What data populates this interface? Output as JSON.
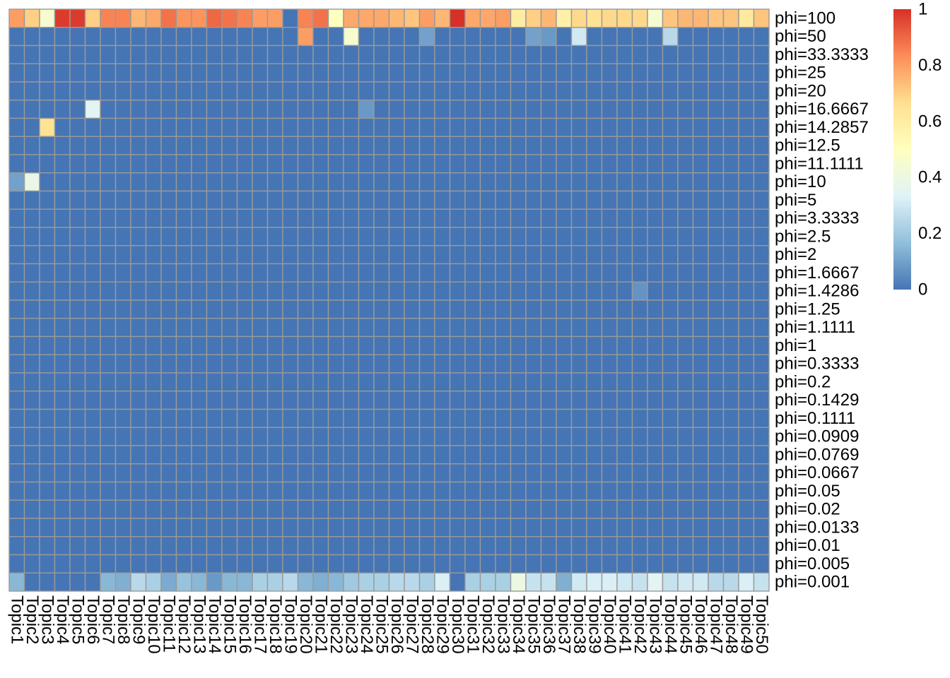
{
  "chart_data": {
    "type": "heatmap",
    "columns": [
      "Topic1",
      "Topic2",
      "Topic3",
      "Topic4",
      "Topic5",
      "Topic6",
      "Topic7",
      "Topic8",
      "Topic9",
      "Topic10",
      "Topic11",
      "Topic12",
      "Topic13",
      "Topic14",
      "Topic15",
      "Topic16",
      "Topic17",
      "Topic18",
      "Topic19",
      "Topic20",
      "Topic21",
      "Topic22",
      "Topic23",
      "Topic24",
      "Topic25",
      "Topic26",
      "Topic27",
      "Topic28",
      "Topic29",
      "Topic30",
      "Topic31",
      "Topic32",
      "Topic33",
      "Topic34",
      "Topic35",
      "Topic36",
      "Topic37",
      "Topic38",
      "Topic39",
      "Topic40",
      "Topic41",
      "Topic42",
      "Topic43",
      "Topic44",
      "Topic45",
      "Topic46",
      "Topic47",
      "Topic48",
      "Topic49",
      "Topic50"
    ],
    "rows": [
      "phi=100",
      "phi=50",
      "phi=33.3333",
      "phi=25",
      "phi=20",
      "phi=16.6667",
      "phi=14.2857",
      "phi=12.5",
      "phi=11.1111",
      "phi=10",
      "phi=5",
      "phi=3.3333",
      "phi=2.5",
      "phi=2",
      "phi=1.6667",
      "phi=1.4286",
      "phi=1.25",
      "phi=1.1111",
      "phi=1",
      "phi=0.3333",
      "phi=0.2",
      "phi=0.1429",
      "phi=0.1111",
      "phi=0.0909",
      "phi=0.0769",
      "phi=0.0667",
      "phi=0.05",
      "phi=0.02",
      "phi=0.0133",
      "phi=0.01",
      "phi=0.005",
      "phi=0.001"
    ],
    "default_value": 0.0,
    "row_values": {
      "phi=100": [
        0.8,
        0.7,
        0.45,
        0.98,
        0.98,
        0.7,
        0.85,
        0.85,
        0.75,
        0.78,
        0.88,
        0.82,
        0.82,
        0.9,
        0.88,
        0.85,
        0.8,
        0.8,
        0.0,
        0.85,
        0.88,
        0.5,
        0.78,
        0.78,
        0.78,
        0.75,
        0.72,
        0.8,
        0.75,
        1.0,
        0.78,
        0.78,
        0.8,
        0.6,
        0.7,
        0.75,
        0.58,
        0.68,
        0.65,
        0.68,
        0.68,
        0.68,
        0.45,
        0.72,
        0.75,
        0.75,
        0.72,
        0.72,
        0.62,
        0.72
      ],
      "phi=0.001": [
        0.15,
        0.0,
        0.0,
        0.0,
        0.0,
        0.0,
        0.15,
        0.13,
        0.25,
        0.22,
        0.12,
        0.18,
        0.15,
        0.08,
        0.15,
        0.15,
        0.22,
        0.22,
        0.25,
        0.15,
        0.13,
        0.15,
        0.2,
        0.22,
        0.22,
        0.25,
        0.25,
        0.22,
        0.32,
        0.0,
        0.22,
        0.22,
        0.22,
        0.4,
        0.28,
        0.28,
        0.13,
        0.3,
        0.32,
        0.32,
        0.3,
        0.28,
        0.35,
        0.28,
        0.3,
        0.3,
        0.25,
        0.25,
        0.32,
        0.28
      ]
    },
    "sparse_cells": [
      {
        "row": "phi=50",
        "column": "Topic20",
        "value": 0.8
      },
      {
        "row": "phi=50",
        "column": "Topic23",
        "value": 0.45
      },
      {
        "row": "phi=50",
        "column": "Topic28",
        "value": 0.1
      },
      {
        "row": "phi=50",
        "column": "Topic35",
        "value": 0.1
      },
      {
        "row": "phi=50",
        "column": "Topic36",
        "value": 0.08
      },
      {
        "row": "phi=50",
        "column": "Topic38",
        "value": 0.3
      },
      {
        "row": "phi=50",
        "column": "Topic44",
        "value": 0.25
      },
      {
        "row": "phi=16.6667",
        "column": "Topic6",
        "value": 0.35
      },
      {
        "row": "phi=16.6667",
        "column": "Topic24",
        "value": 0.08
      },
      {
        "row": "phi=14.2857",
        "column": "Topic3",
        "value": 0.65
      },
      {
        "row": "phi=10",
        "column": "Topic1",
        "value": 0.1
      },
      {
        "row": "phi=10",
        "column": "Topic2",
        "value": 0.38
      },
      {
        "row": "phi=1.4286",
        "column": "Topic42",
        "value": 0.07
      }
    ],
    "colorbar": {
      "ticks": [
        "0",
        "0.2",
        "0.4",
        "0.6",
        "0.8",
        "1"
      ],
      "range": [
        0,
        1
      ]
    },
    "colors": {
      "palette": [
        "#4575B4",
        "#91BFDB",
        "#E0F3F8",
        "#FFFFBF",
        "#FEE090",
        "#FC8D59",
        "#D73027"
      ],
      "grid": "#9A9A9A"
    }
  }
}
